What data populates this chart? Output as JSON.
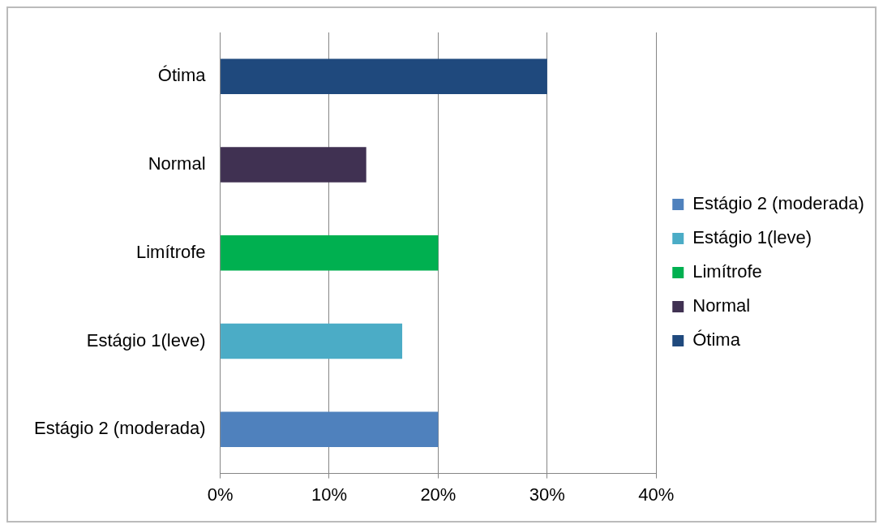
{
  "chart_data": {
    "type": "bar",
    "orientation": "horizontal",
    "categories": [
      "Ótima",
      "Normal",
      "Limítrofe",
      "Estágio 1(leve)",
      "Estágio 2 (moderada)"
    ],
    "series": [
      {
        "name": "Estágio 2 (moderada)",
        "color": "#4f81bd",
        "values": [
          null,
          null,
          null,
          null,
          20
        ]
      },
      {
        "name": "Estágio 1(leve)",
        "color": "#4bacc6",
        "values": [
          null,
          null,
          null,
          16.7,
          null
        ]
      },
      {
        "name": "Limítrofe",
        "color": "#00b050",
        "values": [
          null,
          null,
          20,
          null,
          null
        ]
      },
      {
        "name": "Normal",
        "color": "#403152",
        "values": [
          null,
          13.4,
          null,
          null,
          null
        ]
      },
      {
        "name": "Ótima",
        "color": "#1f497d",
        "values": [
          30,
          null,
          null,
          null,
          null
        ]
      }
    ],
    "xlim": [
      0,
      40
    ],
    "xticks": [
      {
        "value": 0,
        "label": "0%"
      },
      {
        "value": 10,
        "label": "10%"
      },
      {
        "value": 20,
        "label": "20%"
      },
      {
        "value": 30,
        "label": "30%"
      },
      {
        "value": 40,
        "label": "40%"
      }
    ],
    "grid": "x",
    "legend": "right"
  }
}
